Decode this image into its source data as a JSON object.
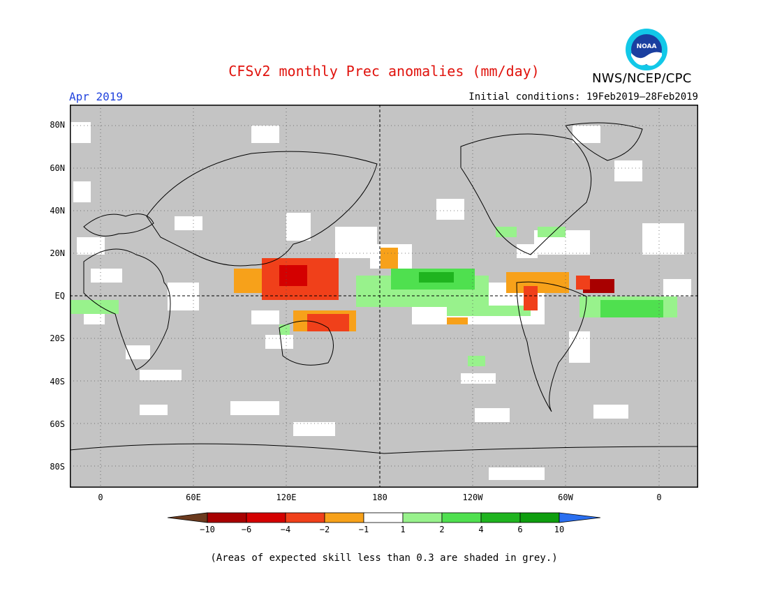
{
  "header": {
    "title": "CFSv2 monthly Prec anomalies (mm/day)",
    "organization": "NWS/NCEP/CPC",
    "logo_text": "NOAA",
    "month": "Apr 2019",
    "initial_conditions": "Initial conditions: 19Feb2019—28Feb2019"
  },
  "map": {
    "lat_labels": [
      "80N",
      "60N",
      "40N",
      "20N",
      "EQ",
      "20S",
      "40S",
      "60S",
      "80S"
    ],
    "lon_labels": [
      "0",
      "60E",
      "120E",
      "180",
      "120W",
      "60W",
      "0"
    ]
  },
  "colorbar": {
    "labels": [
      "−10",
      "−6",
      "−4",
      "−2",
      "−1",
      "1",
      "2",
      "4",
      "6",
      "10"
    ],
    "colors": [
      "#6b3a1e",
      "#a80000",
      "#d40000",
      "#f0401a",
      "#f7a11a",
      "#ffffff",
      "#98f28c",
      "#4fe04f",
      "#1fb41f",
      "#0e9e0e",
      "#2a6ff0"
    ]
  },
  "colors": {
    "skill_grey": "#c4c4c4",
    "title_red": "#e0120c",
    "month_blue": "#2244dd"
  },
  "footnote": "(Areas of expected skill less than 0.3 are shaded in grey.)"
}
